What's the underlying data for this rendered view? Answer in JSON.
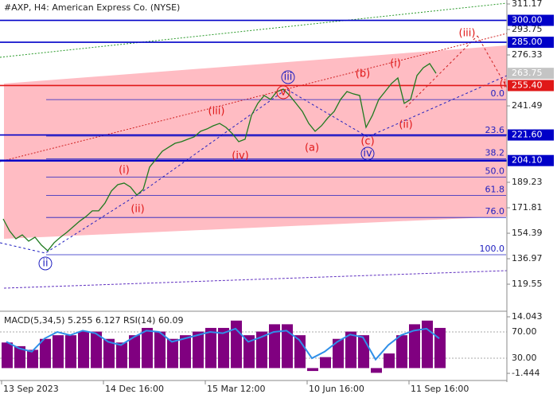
{
  "chart_data": [
    {
      "type": "line",
      "title": "#AXP, H4:  American Express Co. (NYSE)",
      "series": [
        {
          "name": "AXP",
          "color": "#1f7a1f",
          "values": [
            164.2,
            156.0,
            150.6,
            153.3,
            149.0,
            151.7,
            146.3,
            142.4,
            147.9,
            151.7,
            155.0,
            158.8,
            162.6,
            165.8,
            169.7,
            169.7,
            175.1,
            183.3,
            187.6,
            188.7,
            186.0,
            180.5,
            184.4,
            199.6,
            205.0,
            210.5,
            213.2,
            215.9,
            217.0,
            218.7,
            220.3,
            224.1,
            225.7,
            227.9,
            229.5,
            226.8,
            222.5,
            217.0,
            218.7,
            235.0,
            243.2,
            248.6,
            245.9,
            251.3,
            252.9,
            248.6,
            243.2,
            237.7,
            229.5,
            224.1,
            227.9,
            233.3,
            237.7,
            245.9,
            251.3,
            249.7,
            248.6,
            226.8,
            235.0,
            245.9,
            251.3,
            256.8,
            260.6,
            243.2,
            245.9,
            262.2,
            267.6,
            270.4,
            263.75
          ]
        }
      ],
      "current_price": {
        "value": 263.75,
        "label": "263.75"
      },
      "ylim": [
        101.6,
        313.9
      ],
      "yticks": [
        311.17,
        293.75,
        276.33,
        241.49,
        189.23,
        171.81,
        154.39,
        136.97,
        119.55
      ],
      "levels": [
        {
          "value": 300,
          "label": "300.00",
          "color": "#0000c8"
        },
        {
          "value": 285,
          "label": "285.00",
          "color": "#0000c8"
        },
        {
          "value": 255.4,
          "label": "255.40",
          "color": "#e01818"
        },
        {
          "value": 221.6,
          "label": "221.60",
          "color": "#0000c8"
        },
        {
          "value": 204.1,
          "label": "204.10",
          "color": "#0000c8"
        }
      ],
      "fib_levels": [
        {
          "value": 245.8,
          "label": "0.0"
        },
        {
          "value": 220.8,
          "label": "23.6"
        },
        {
          "value": 205.3,
          "label": "38.2"
        },
        {
          "value": 192.8,
          "label": "50.0"
        },
        {
          "value": 180.2,
          "label": "61.8"
        },
        {
          "value": 165.2,
          "label": "76.0"
        },
        {
          "value": 139.7,
          "label": "100.0"
        }
      ],
      "annotations": [
        "iii",
        "v",
        "(iii)",
        "(iv)",
        "(i)",
        "(ii)",
        "ii",
        "(a)",
        "(b)",
        "(c)",
        "iv",
        "(i)",
        "(ii)",
        "(iii)",
        "(i"
      ],
      "x_axis_labels": [
        "13 Sep 2023",
        "14 Dec 16:00",
        "15 Mar 12:00",
        "10 Jun 16:00",
        "11 Sep 16:00"
      ]
    },
    {
      "type": "bar",
      "title": "MACD(5,34,5) 5.255 6.127 RSI(14) 60.09",
      "series": [
        {
          "name": "MACD",
          "color": "#800080",
          "values": [
            7,
            6,
            5,
            8,
            9,
            9,
            10,
            10,
            8,
            7,
            9,
            11,
            10,
            8,
            9,
            10,
            11,
            11,
            13,
            9,
            10,
            12,
            12,
            9,
            -0.8,
            3,
            8,
            10,
            9,
            -1.3,
            4,
            9,
            12,
            13,
            11
          ]
        },
        {
          "name": "RSI",
          "color": "#2f8fe8",
          "axis": "y2",
          "values": [
            55,
            45,
            40,
            60,
            70,
            65,
            72,
            68,
            55,
            50,
            62,
            72,
            70,
            55,
            60,
            65,
            70,
            68,
            75,
            55,
            62,
            70,
            72,
            58,
            30,
            40,
            55,
            66,
            62,
            28,
            50,
            65,
            72,
            75,
            60.09
          ]
        }
      ],
      "ylim": [
        -3.4,
        15.35
      ],
      "yticks": [
        14.043,
        -1.444
      ],
      "y2lim": [
        -3.9,
        100.3
      ],
      "y2ticks": [
        {
          "value": 70,
          "label": "70.00"
        },
        {
          "value": 30,
          "label": "30.00"
        }
      ]
    }
  ]
}
